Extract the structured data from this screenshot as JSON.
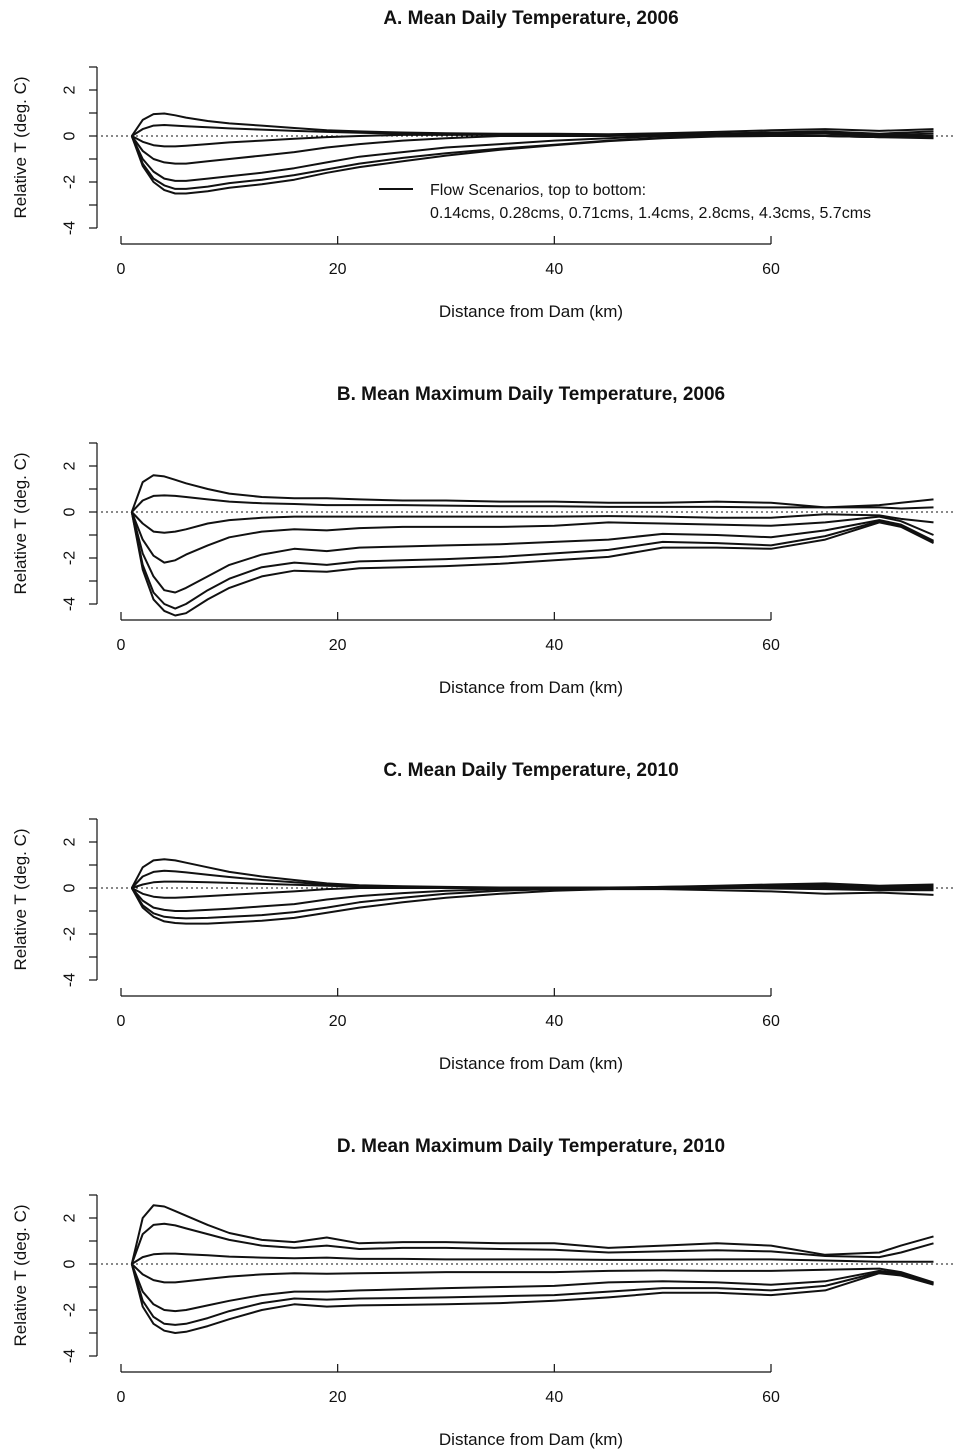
{
  "chart_data": [
    {
      "type": "line",
      "title": "A. Mean Daily Temperature, 2006",
      "xlabel": "Distance from Dam (km)",
      "ylabel": "Relative T (deg. C)",
      "xlim": [
        0,
        75
      ],
      "ylim": [
        -4,
        3
      ],
      "xticks": [
        0,
        20,
        40,
        60
      ],
      "yticks": [
        -4,
        -2,
        0,
        2
      ],
      "reference_line": 0,
      "legend": {
        "position": "center-right",
        "title": "Flow Scenarios, top to bottom:",
        "entries": "0.14cms, 0.28cms, 0.71cms, 1.4cms, 2.8cms, 4.3cms, 5.7cms"
      },
      "x": [
        1,
        2,
        3,
        4,
        5,
        6,
        8,
        10,
        13,
        16,
        19,
        22,
        26,
        30,
        35,
        40,
        45,
        50,
        55,
        60,
        65,
        70,
        75
      ],
      "series": [
        {
          "values": [
            0,
            0.7,
            0.95,
            0.98,
            0.9,
            0.8,
            0.65,
            0.55,
            0.45,
            0.35,
            0.25,
            0.2,
            0.15,
            0.12,
            0.1,
            0.1,
            0.08,
            0.12,
            0.18,
            0.25,
            0.3,
            0.22,
            0.3
          ]
        },
        {
          "values": [
            0,
            0.3,
            0.45,
            0.48,
            0.45,
            0.42,
            0.38,
            0.33,
            0.28,
            0.22,
            0.18,
            0.14,
            0.1,
            0.1,
            0.05,
            0.0,
            0.0,
            0.05,
            0.1,
            0.15,
            0.2,
            0.1,
            0.2
          ]
        },
        {
          "values": [
            0,
            -0.25,
            -0.4,
            -0.45,
            -0.45,
            -0.42,
            -0.35,
            -0.28,
            -0.2,
            -0.12,
            -0.05,
            0.0,
            0.05,
            0.05,
            0.05,
            0.05,
            0.05,
            0.1,
            0.1,
            0.15,
            0.15,
            0.05,
            0.1
          ]
        },
        {
          "values": [
            0,
            -0.65,
            -1.0,
            -1.15,
            -1.2,
            -1.2,
            -1.1,
            -1.0,
            -0.85,
            -0.7,
            -0.5,
            -0.35,
            -0.2,
            -0.1,
            0.0,
            0.0,
            0.05,
            0.05,
            0.1,
            0.1,
            0.1,
            0.0,
            0.0
          ]
        },
        {
          "values": [
            0,
            -1.0,
            -1.55,
            -1.85,
            -1.95,
            -1.95,
            -1.85,
            -1.75,
            -1.6,
            -1.4,
            -1.15,
            -0.9,
            -0.7,
            -0.5,
            -0.35,
            -0.2,
            -0.1,
            0.0,
            0.05,
            0.05,
            0.0,
            -0.05,
            0.0
          ]
        },
        {
          "values": [
            0,
            -1.2,
            -1.85,
            -2.15,
            -2.3,
            -2.3,
            -2.2,
            -2.05,
            -1.9,
            -1.7,
            -1.45,
            -1.2,
            -0.95,
            -0.75,
            -0.55,
            -0.38,
            -0.2,
            -0.08,
            0.0,
            0.0,
            0.0,
            -0.05,
            -0.05
          ]
        },
        {
          "values": [
            0,
            -1.3,
            -2.0,
            -2.35,
            -2.5,
            -2.5,
            -2.4,
            -2.25,
            -2.1,
            -1.9,
            -1.6,
            -1.35,
            -1.1,
            -0.85,
            -0.6,
            -0.4,
            -0.22,
            -0.1,
            -0.02,
            0.0,
            0.0,
            -0.05,
            -0.1
          ]
        }
      ]
    },
    {
      "type": "line",
      "title": "B. Mean Maximum Daily Temperature, 2006",
      "xlabel": "Distance from Dam (km)",
      "ylabel": "Relative T (deg. C)",
      "xlim": [
        0,
        75
      ],
      "ylim": [
        -4,
        3
      ],
      "xticks": [
        0,
        20,
        40,
        60
      ],
      "yticks": [
        -4,
        -2,
        0,
        2
      ],
      "reference_line": 0,
      "x": [
        1,
        2,
        3,
        4,
        5,
        6,
        8,
        10,
        13,
        16,
        19,
        22,
        26,
        30,
        35,
        40,
        45,
        50,
        55,
        60,
        65,
        70,
        72,
        75
      ],
      "series": [
        {
          "values": [
            0,
            1.3,
            1.6,
            1.55,
            1.4,
            1.25,
            1.0,
            0.8,
            0.65,
            0.6,
            0.6,
            0.55,
            0.5,
            0.5,
            0.45,
            0.45,
            0.4,
            0.4,
            0.45,
            0.4,
            0.2,
            0.3,
            0.4,
            0.55
          ]
        },
        {
          "values": [
            0,
            0.5,
            0.7,
            0.72,
            0.7,
            0.65,
            0.55,
            0.45,
            0.38,
            0.35,
            0.3,
            0.3,
            0.3,
            0.28,
            0.25,
            0.25,
            0.22,
            0.22,
            0.22,
            0.2,
            0.2,
            0.2,
            0.15,
            0.2
          ]
        },
        {
          "values": [
            0,
            -0.5,
            -0.85,
            -0.9,
            -0.85,
            -0.75,
            -0.5,
            -0.35,
            -0.25,
            -0.2,
            -0.2,
            -0.2,
            -0.2,
            -0.2,
            -0.2,
            -0.2,
            -0.18,
            -0.2,
            -0.25,
            -0.25,
            -0.1,
            -0.15,
            -0.3,
            -0.45
          ]
        },
        {
          "values": [
            0,
            -1.2,
            -1.9,
            -2.2,
            -2.1,
            -1.85,
            -1.45,
            -1.1,
            -0.85,
            -0.75,
            -0.8,
            -0.7,
            -0.65,
            -0.65,
            -0.65,
            -0.6,
            -0.45,
            -0.5,
            -0.55,
            -0.6,
            -0.45,
            -0.2,
            -0.4,
            -1.0
          ]
        },
        {
          "values": [
            0,
            -1.8,
            -2.8,
            -3.4,
            -3.5,
            -3.3,
            -2.8,
            -2.3,
            -1.85,
            -1.6,
            -1.7,
            -1.55,
            -1.5,
            -1.45,
            -1.4,
            -1.3,
            -1.2,
            -0.95,
            -1.0,
            -1.1,
            -0.8,
            -0.35,
            -0.55,
            -1.25
          ]
        },
        {
          "values": [
            0,
            -2.3,
            -3.5,
            -4.0,
            -4.2,
            -4.0,
            -3.4,
            -2.9,
            -2.4,
            -2.2,
            -2.3,
            -2.15,
            -2.1,
            -2.05,
            -1.95,
            -1.8,
            -1.65,
            -1.3,
            -1.35,
            -1.45,
            -1.05,
            -0.4,
            -0.6,
            -1.3
          ]
        },
        {
          "values": [
            0,
            -2.5,
            -3.8,
            -4.3,
            -4.5,
            -4.4,
            -3.8,
            -3.3,
            -2.8,
            -2.55,
            -2.6,
            -2.45,
            -2.4,
            -2.35,
            -2.25,
            -2.1,
            -1.95,
            -1.55,
            -1.55,
            -1.6,
            -1.2,
            -0.45,
            -0.65,
            -1.35
          ]
        }
      ]
    },
    {
      "type": "line",
      "title": "C. Mean Daily Temperature, 2010",
      "xlabel": "Distance from Dam (km)",
      "ylabel": "Relative T (deg. C)",
      "xlim": [
        0,
        75
      ],
      "ylim": [
        -4,
        3
      ],
      "xticks": [
        0,
        20,
        40,
        60
      ],
      "yticks": [
        -4,
        -2,
        0,
        2
      ],
      "reference_line": 0,
      "x": [
        1,
        2,
        3,
        4,
        5,
        6,
        8,
        10,
        13,
        16,
        19,
        22,
        26,
        30,
        35,
        40,
        45,
        50,
        55,
        60,
        65,
        70,
        75
      ],
      "series": [
        {
          "values": [
            0,
            0.9,
            1.2,
            1.25,
            1.2,
            1.1,
            0.9,
            0.7,
            0.5,
            0.35,
            0.2,
            0.12,
            0.08,
            0.05,
            0.02,
            0.02,
            0.02,
            0.05,
            0.1,
            0.15,
            0.2,
            0.1,
            0.15
          ]
        },
        {
          "values": [
            0,
            0.5,
            0.7,
            0.75,
            0.72,
            0.68,
            0.58,
            0.48,
            0.35,
            0.25,
            0.15,
            0.1,
            0.05,
            0.03,
            0.0,
            0.0,
            0.0,
            0.05,
            0.08,
            0.12,
            0.15,
            0.05,
            0.1
          ]
        },
        {
          "values": [
            0,
            0.15,
            0.25,
            0.28,
            0.28,
            0.27,
            0.25,
            0.22,
            0.18,
            0.14,
            0.1,
            0.06,
            0.03,
            0.0,
            0.0,
            0.0,
            0.0,
            0.02,
            0.05,
            0.08,
            0.1,
            0.05,
            0.08
          ]
        },
        {
          "values": [
            0,
            -0.25,
            -0.38,
            -0.42,
            -0.42,
            -0.4,
            -0.35,
            -0.3,
            -0.22,
            -0.15,
            -0.05,
            0.0,
            0.0,
            0.0,
            0.0,
            0.0,
            0.0,
            0.0,
            0.0,
            0.05,
            0.05,
            0.0,
            0.0
          ]
        },
        {
          "values": [
            0,
            -0.55,
            -0.85,
            -0.95,
            -1.0,
            -1.0,
            -0.95,
            -0.9,
            -0.8,
            -0.7,
            -0.5,
            -0.35,
            -0.22,
            -0.12,
            -0.05,
            0.0,
            0.0,
            0.0,
            0.0,
            0.0,
            0.0,
            -0.05,
            -0.05
          ]
        },
        {
          "values": [
            0,
            -0.75,
            -1.1,
            -1.25,
            -1.3,
            -1.32,
            -1.3,
            -1.25,
            -1.18,
            -1.05,
            -0.85,
            -0.62,
            -0.42,
            -0.25,
            -0.12,
            -0.05,
            0.0,
            0.0,
            0.0,
            -0.02,
            -0.05,
            -0.1,
            -0.1
          ]
        },
        {
          "values": [
            0,
            -0.85,
            -1.25,
            -1.45,
            -1.52,
            -1.55,
            -1.55,
            -1.5,
            -1.42,
            -1.3,
            -1.08,
            -0.85,
            -0.62,
            -0.42,
            -0.25,
            -0.12,
            -0.05,
            -0.05,
            -0.1,
            -0.15,
            -0.25,
            -0.2,
            -0.3
          ]
        }
      ]
    },
    {
      "type": "line",
      "title": "D. Mean Maximum Daily Temperature, 2010",
      "xlabel": "Distance from Dam (km)",
      "ylabel": "Relative T (deg. C)",
      "xlim": [
        0,
        75
      ],
      "ylim": [
        -4,
        3
      ],
      "xticks": [
        0,
        20,
        40,
        60
      ],
      "yticks": [
        -4,
        -2,
        0,
        2
      ],
      "reference_line": 0,
      "x": [
        1,
        2,
        3,
        4,
        5,
        6,
        8,
        10,
        13,
        16,
        19,
        22,
        26,
        30,
        35,
        40,
        45,
        50,
        55,
        60,
        65,
        70,
        72,
        75
      ],
      "series": [
        {
          "values": [
            0,
            2.0,
            2.55,
            2.5,
            2.3,
            2.1,
            1.7,
            1.35,
            1.05,
            0.95,
            1.15,
            0.9,
            0.95,
            0.95,
            0.9,
            0.9,
            0.7,
            0.8,
            0.9,
            0.8,
            0.4,
            0.5,
            0.8,
            1.2
          ]
        },
        {
          "values": [
            0,
            1.3,
            1.7,
            1.75,
            1.68,
            1.55,
            1.3,
            1.05,
            0.8,
            0.7,
            0.8,
            0.65,
            0.7,
            0.7,
            0.65,
            0.62,
            0.5,
            0.55,
            0.6,
            0.55,
            0.35,
            0.3,
            0.5,
            0.9
          ]
        },
        {
          "values": [
            0,
            0.3,
            0.42,
            0.45,
            0.45,
            0.42,
            0.38,
            0.32,
            0.28,
            0.25,
            0.28,
            0.22,
            0.22,
            0.2,
            0.2,
            0.2,
            0.18,
            0.18,
            0.2,
            0.2,
            0.15,
            0.1,
            0.1,
            0.1
          ]
        },
        {
          "values": [
            0,
            -0.45,
            -0.7,
            -0.8,
            -0.8,
            -0.75,
            -0.65,
            -0.55,
            -0.45,
            -0.4,
            -0.42,
            -0.4,
            -0.38,
            -0.35,
            -0.35,
            -0.35,
            -0.3,
            -0.28,
            -0.3,
            -0.3,
            -0.25,
            -0.2,
            -0.35,
            -0.8
          ]
        },
        {
          "values": [
            0,
            -1.2,
            -1.75,
            -2.0,
            -2.05,
            -2.0,
            -1.8,
            -1.6,
            -1.35,
            -1.2,
            -1.2,
            -1.15,
            -1.1,
            -1.05,
            -1.0,
            -0.95,
            -0.8,
            -0.75,
            -0.8,
            -0.9,
            -0.75,
            -0.3,
            -0.4,
            -0.85
          ]
        },
        {
          "values": [
            0,
            -1.6,
            -2.3,
            -2.6,
            -2.65,
            -2.6,
            -2.35,
            -2.05,
            -1.7,
            -1.5,
            -1.55,
            -1.5,
            -1.48,
            -1.45,
            -1.4,
            -1.35,
            -1.2,
            -1.05,
            -1.05,
            -1.15,
            -0.95,
            -0.35,
            -0.45,
            -0.85
          ]
        },
        {
          "values": [
            0,
            -1.85,
            -2.6,
            -2.9,
            -3.0,
            -2.95,
            -2.7,
            -2.4,
            -2.0,
            -1.75,
            -1.85,
            -1.8,
            -1.78,
            -1.75,
            -1.7,
            -1.6,
            -1.45,
            -1.25,
            -1.25,
            -1.35,
            -1.15,
            -0.4,
            -0.5,
            -0.9
          ]
        }
      ]
    }
  ]
}
